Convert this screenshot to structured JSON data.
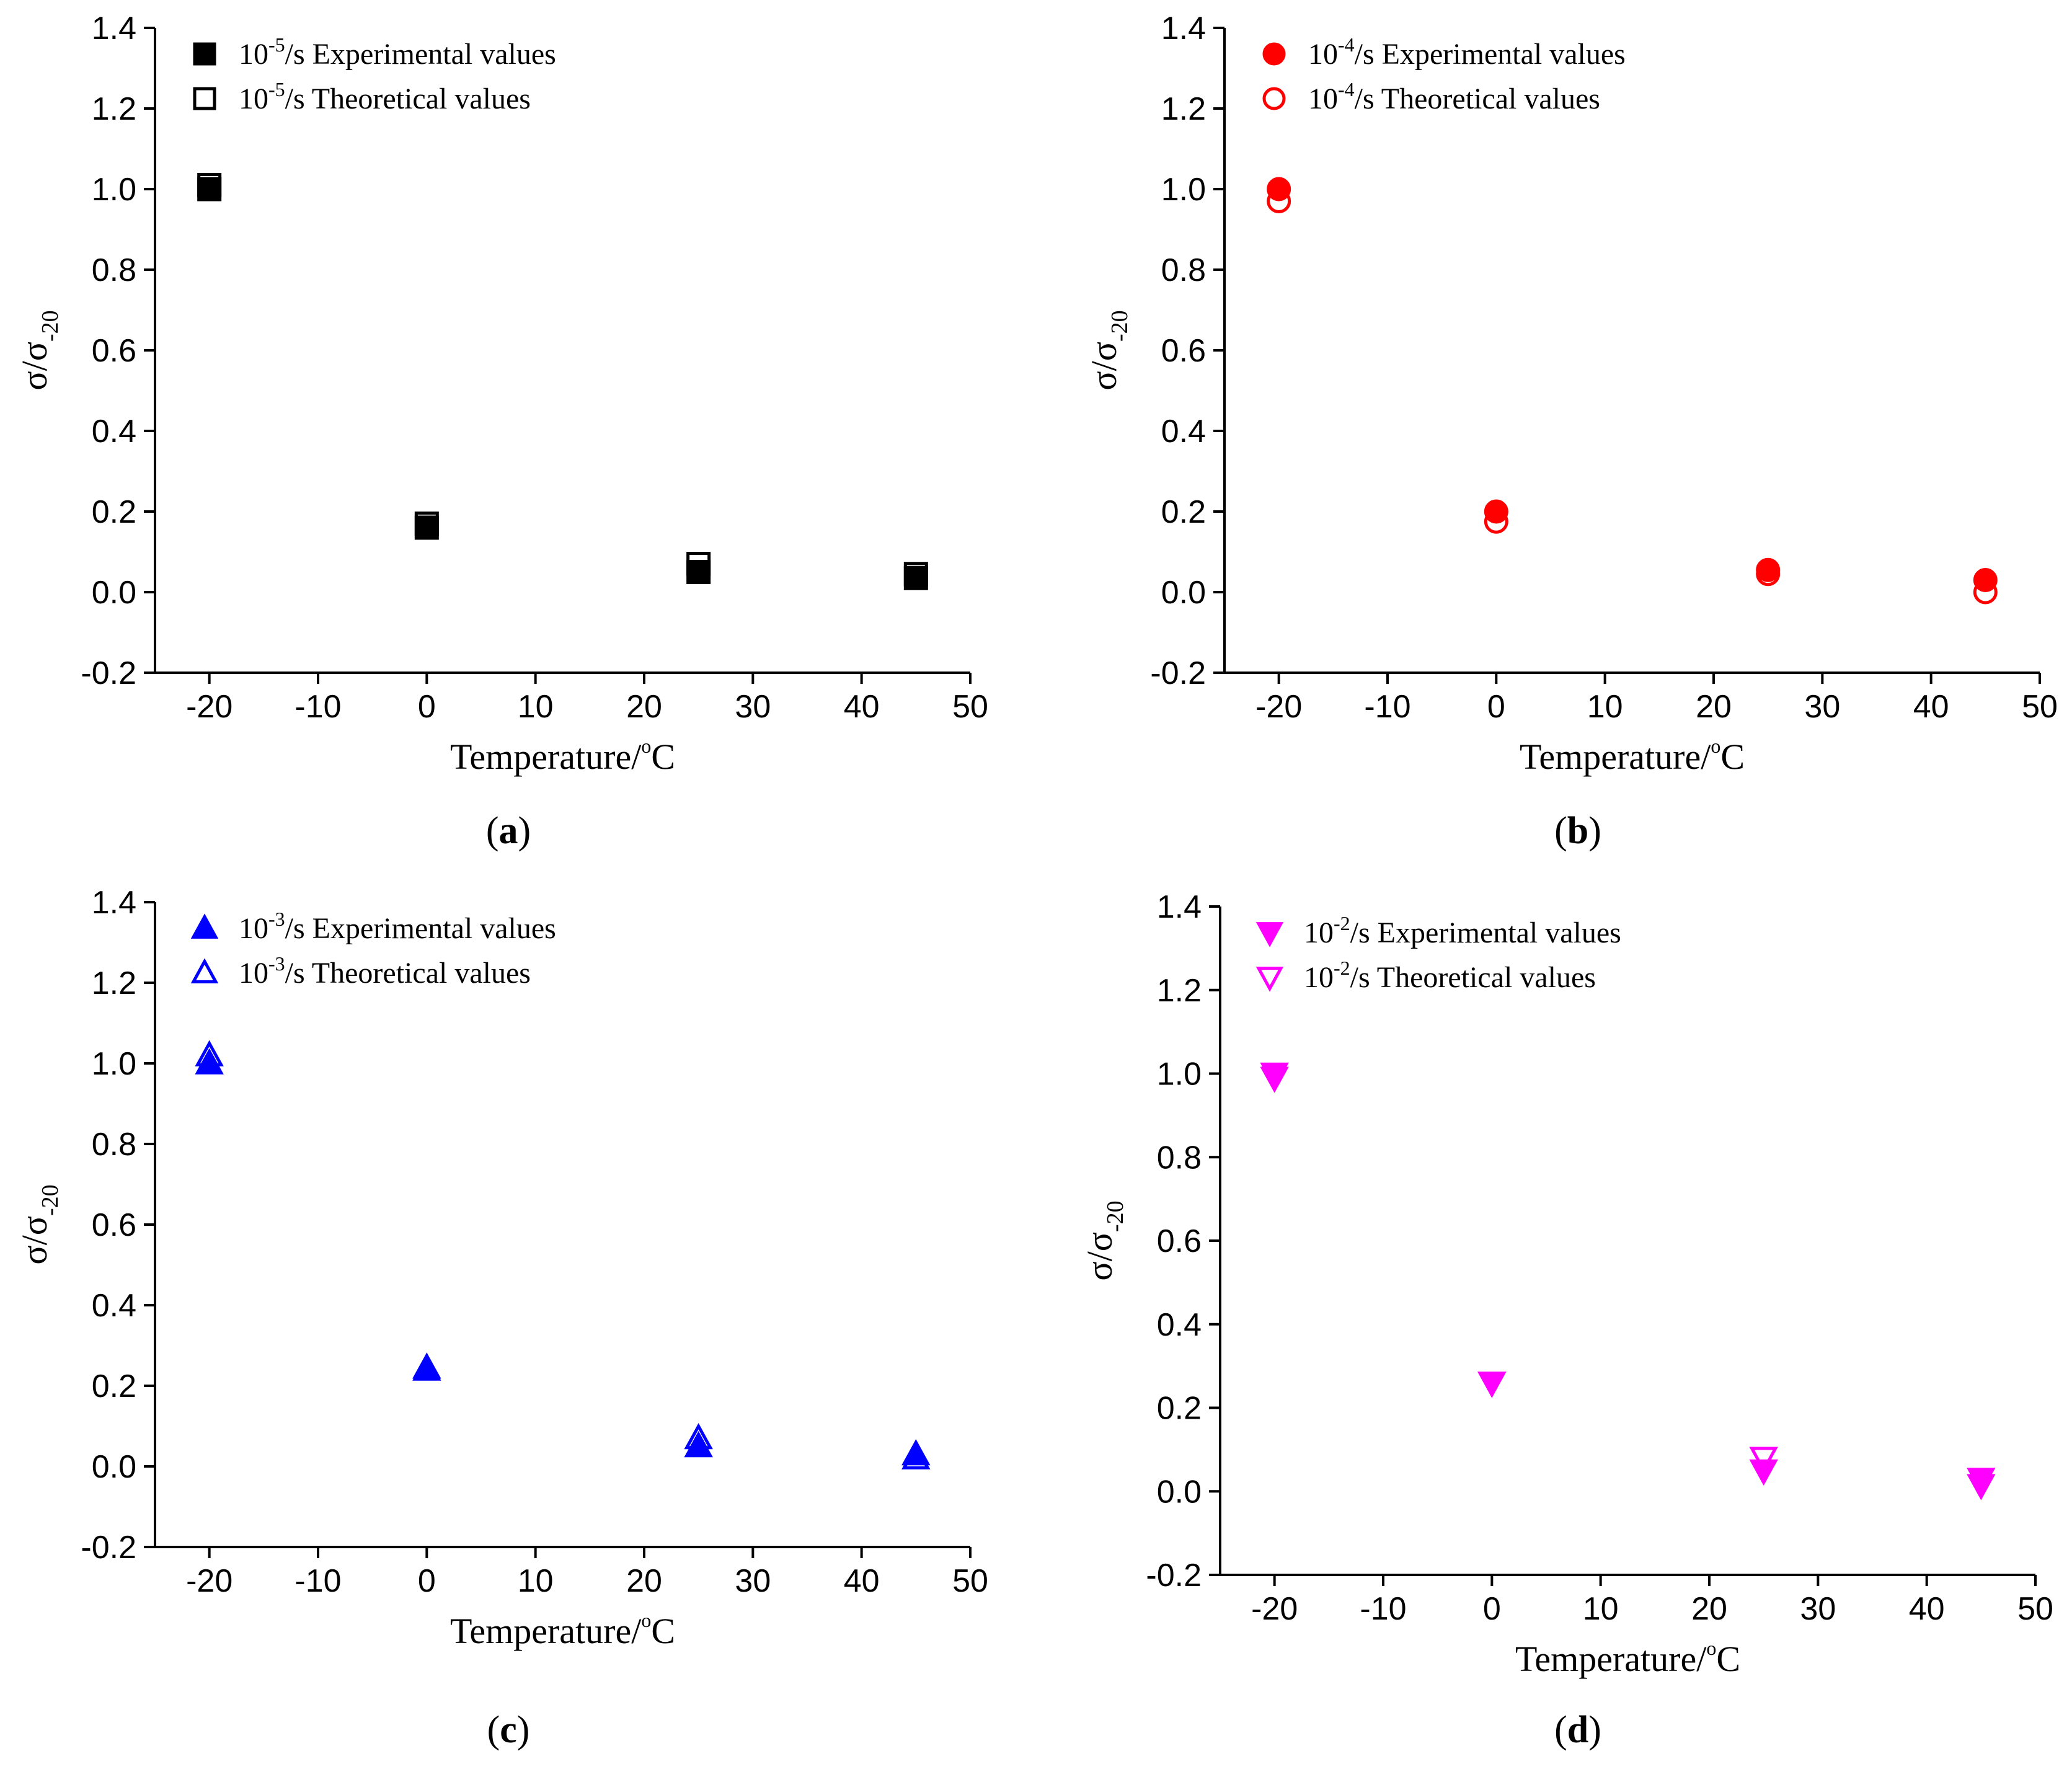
{
  "figure": {
    "panels": [
      {
        "id": "a",
        "caption_open": "(",
        "caption_letter": "a",
        "caption_close": ")"
      },
      {
        "id": "b",
        "caption_open": "(",
        "caption_letter": "b",
        "caption_close": ")"
      },
      {
        "id": "c",
        "caption_open": "(",
        "caption_letter": "c",
        "caption_close": ")"
      },
      {
        "id": "d",
        "caption_open": "(",
        "caption_letter": "d",
        "caption_close": ")"
      }
    ]
  },
  "chart_data": [
    {
      "panel": "a",
      "type": "scatter",
      "xlabel": "Temperature/",
      "xlabel_sup": "o",
      "xlabel_unit": "C",
      "ylabel_main": "σ/σ",
      "ylabel_sub": "-20",
      "xlim": [
        -25,
        50
      ],
      "ylim": [
        -0.2,
        1.4
      ],
      "xticks": [
        -20,
        -10,
        0,
        10,
        20,
        30,
        40,
        50
      ],
      "yticks": [
        -0.2,
        0.0,
        0.2,
        0.4,
        0.6,
        0.8,
        1.0,
        1.2,
        1.4
      ],
      "x": [
        -20,
        0,
        25,
        45
      ],
      "series": [
        {
          "name": "10-5/s Experimental values",
          "legend_base": "10",
          "legend_exp": "-5",
          "legend_rest": "/s Experimental values",
          "marker": "square",
          "filled": true,
          "color": "#000000",
          "values": [
            1.0,
            0.16,
            0.05,
            0.035
          ]
        },
        {
          "name": "10-5/s Theoretical values",
          "legend_base": "10",
          "legend_exp": "-5",
          "legend_rest": "/s Theoretical values",
          "marker": "square",
          "filled": false,
          "color": "#000000",
          "values": [
            1.01,
            0.17,
            0.07,
            0.045
          ]
        }
      ]
    },
    {
      "panel": "b",
      "type": "scatter",
      "xlabel": "Temperature/",
      "xlabel_sup": "o",
      "xlabel_unit": "C",
      "ylabel_main": "σ/σ",
      "ylabel_sub": "-20",
      "xlim": [
        -25,
        50
      ],
      "ylim": [
        -0.2,
        1.4
      ],
      "xticks": [
        -20,
        -10,
        0,
        10,
        20,
        30,
        40,
        50
      ],
      "yticks": [
        -0.2,
        0.0,
        0.2,
        0.4,
        0.6,
        0.8,
        1.0,
        1.2,
        1.4
      ],
      "x": [
        -20,
        0,
        25,
        45
      ],
      "series": [
        {
          "name": "10-4/s Experimental values",
          "legend_base": "10",
          "legend_exp": "-4",
          "legend_rest": "/s Experimental values",
          "marker": "circle",
          "filled": true,
          "color": "#ff0000",
          "values": [
            1.0,
            0.2,
            0.055,
            0.03
          ]
        },
        {
          "name": "10-4/s Theoretical values",
          "legend_base": "10",
          "legend_exp": "-4",
          "legend_rest": "/s Theoretical values",
          "marker": "circle",
          "filled": false,
          "color": "#ff0000",
          "values": [
            0.97,
            0.175,
            0.045,
            0.0
          ]
        }
      ]
    },
    {
      "panel": "c",
      "type": "scatter",
      "xlabel": "Temperature/",
      "xlabel_sup": "o",
      "xlabel_unit": "C",
      "ylabel_main": "σ/σ",
      "ylabel_sub": "-20",
      "xlim": [
        -25,
        50
      ],
      "ylim": [
        -0.2,
        1.4
      ],
      "xticks": [
        -20,
        -10,
        0,
        10,
        20,
        30,
        40,
        50
      ],
      "yticks": [
        -0.2,
        0.0,
        0.2,
        0.4,
        0.6,
        0.8,
        1.0,
        1.2,
        1.4
      ],
      "x": [
        -20,
        0,
        25,
        45
      ],
      "series": [
        {
          "name": "10-3/s Experimental values",
          "legend_base": "10",
          "legend_exp": "-3",
          "legend_rest": "/s Experimental values",
          "marker": "triangle-up",
          "filled": true,
          "color": "#0000ff",
          "values": [
            1.0,
            0.24,
            0.05,
            0.03
          ]
        },
        {
          "name": "10-3/s Theoretical values",
          "legend_base": "10",
          "legend_exp": "-3",
          "legend_rest": "/s Theoretical values",
          "marker": "triangle-up",
          "filled": false,
          "color": "#0000ff",
          "values": [
            1.02,
            0.245,
            0.07,
            0.02
          ]
        }
      ]
    },
    {
      "panel": "d",
      "type": "scatter",
      "xlabel": "Temperature/",
      "xlabel_sup": "o",
      "xlabel_unit": "C",
      "ylabel_main": "σ/σ",
      "ylabel_sub": "-20",
      "xlim": [
        -25,
        50
      ],
      "ylim": [
        -0.2,
        1.4
      ],
      "xticks": [
        -20,
        -10,
        0,
        10,
        20,
        30,
        40,
        50
      ],
      "yticks": [
        -0.2,
        0.0,
        0.2,
        0.4,
        0.6,
        0.8,
        1.0,
        1.2,
        1.4
      ],
      "x": [
        -20,
        0,
        25,
        45
      ],
      "series": [
        {
          "name": "10-2/s Experimental values",
          "legend_base": "10",
          "legend_exp": "-2",
          "legend_rest": "/s Experimental values",
          "marker": "triangle-down",
          "filled": true,
          "color": "#ff00ff",
          "values": [
            1.0,
            0.26,
            0.05,
            0.03
          ]
        },
        {
          "name": "10-2/s Theoretical values",
          "legend_base": "10",
          "legend_exp": "-2",
          "legend_rest": "/s Theoretical values",
          "marker": "triangle-down",
          "filled": false,
          "color": "#ff00ff",
          "values": [
            0.99,
            0.26,
            0.08,
            0.015
          ]
        }
      ]
    }
  ]
}
